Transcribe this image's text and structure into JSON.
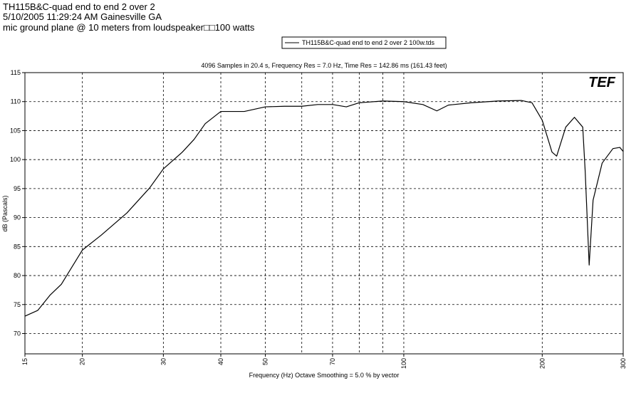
{
  "chart_data": {
    "type": "line",
    "header": [
      "TH115B&C-quad end to end 2 over 2",
      "5/10/2005 11:29:24 AM    Gainesville GA",
      "mic ground plane @ 10 meters from loudspeaker□□100 watts"
    ],
    "title": "4096 Samples in 20.4 s, Frequency Res = 7.0 Hz, Time Res = 142.86 ms (161.43 feet)",
    "logo": "TEF",
    "xlabel": "Frequency (Hz) Octave Smoothing = 5.0 % by vector",
    "ylabel": "dB (Pascals)",
    "xscale": "log",
    "xlim": [
      15,
      300
    ],
    "xticks": [
      15,
      20,
      30,
      40,
      50,
      70,
      100,
      200,
      300
    ],
    "xminorgrid": [
      60,
      80,
      90
    ],
    "ylim": [
      66.5,
      115
    ],
    "yticks": [
      70,
      75,
      80,
      85,
      90,
      95,
      100,
      105,
      110,
      115
    ],
    "grid": true,
    "legend": "top",
    "series": [
      {
        "name": "TH115B&C-quad end to end 2 over 2 100w.tds",
        "color": "#000000",
        "x": [
          15,
          16,
          17,
          18,
          20,
          22,
          25,
          28,
          30,
          33,
          35,
          37,
          40,
          45,
          50,
          55,
          60,
          65,
          70,
          75,
          80,
          90,
          100,
          110,
          118,
          125,
          140,
          160,
          180,
          190,
          200,
          210,
          215,
          225,
          235,
          245,
          248,
          253,
          258,
          270,
          285,
          295,
          300
        ],
        "values": [
          73,
          74,
          76.6,
          78.5,
          84.4,
          87,
          90.8,
          95.1,
          98.4,
          101.3,
          103.5,
          106.2,
          108.3,
          108.3,
          109.1,
          109.2,
          109.2,
          109.5,
          109.5,
          109.1,
          109.8,
          110.1,
          110,
          109.5,
          108.4,
          109.4,
          109.8,
          110.1,
          110.2,
          109.8,
          106.8,
          101.3,
          100.6,
          105.6,
          107.3,
          105.6,
          98,
          81.8,
          93,
          99.4,
          101.9,
          102.1,
          101.4
        ]
      }
    ]
  }
}
